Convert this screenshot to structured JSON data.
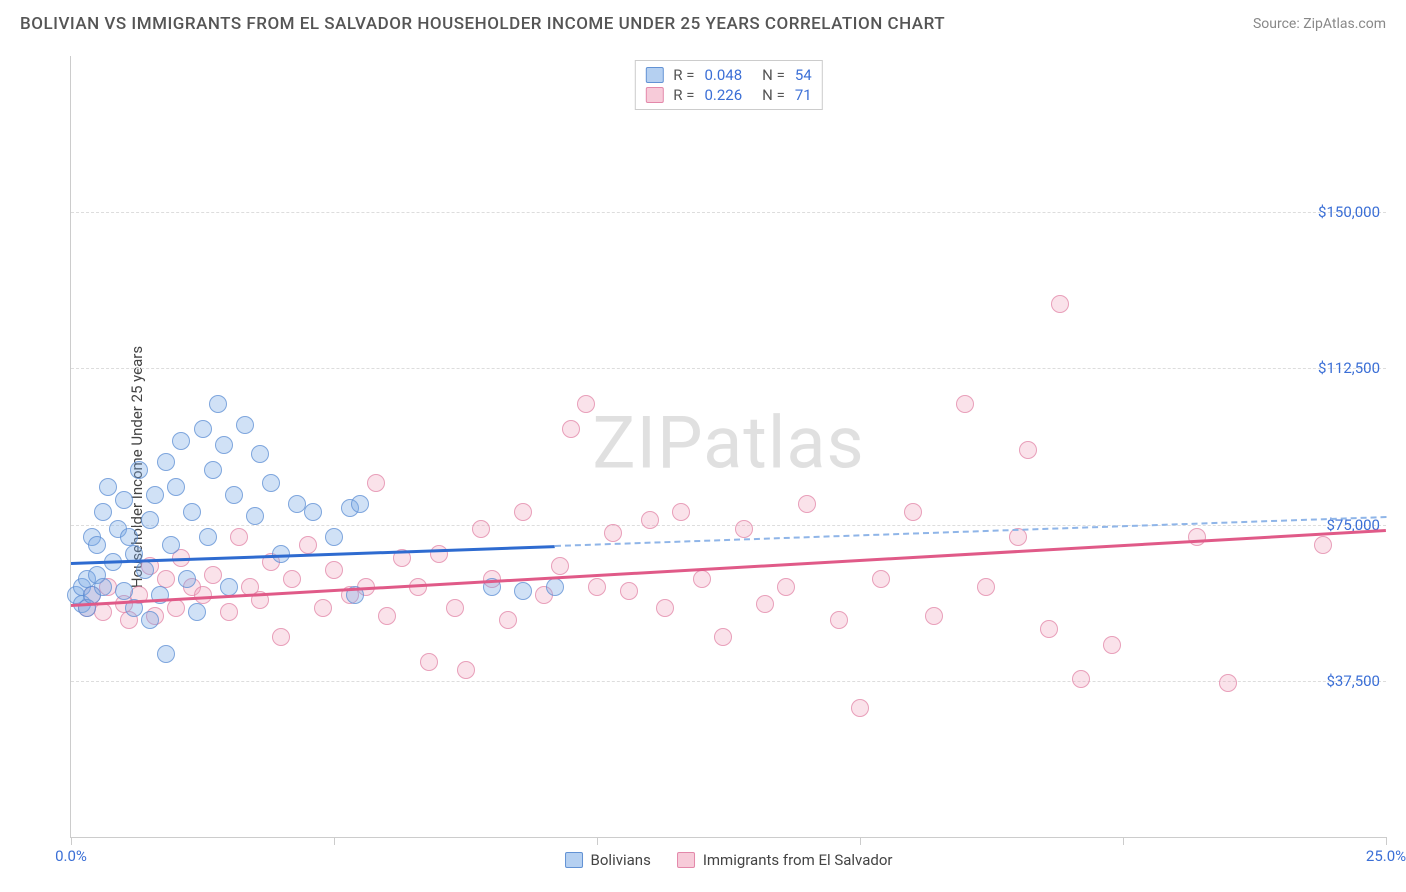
{
  "title": "BOLIVIAN VS IMMIGRANTS FROM EL SALVADOR HOUSEHOLDER INCOME UNDER 25 YEARS CORRELATION CHART",
  "source_prefix": "Source: ",
  "source_name": "ZipAtlas.com",
  "y_axis_label": "Householder Income Under 25 years",
  "watermark": "ZIPatlas",
  "chart": {
    "type": "scatter",
    "xlim": [
      0,
      25
    ],
    "ylim": [
      0,
      187500
    ],
    "x_ticks": [
      0,
      5,
      10,
      15,
      20,
      25
    ],
    "x_tick_labels": {
      "0": "0.0%",
      "25": "25.0%"
    },
    "y_ticks": [
      37500,
      75000,
      112500,
      150000
    ],
    "y_tick_labels": [
      "$37,500",
      "$75,000",
      "$112,500",
      "$150,000"
    ],
    "background_color": "#ffffff",
    "grid_color": "#dddddd",
    "series_a": {
      "label": "Bolivians",
      "color_fill": "rgba(120,170,230,0.35)",
      "color_stroke": "rgba(90,140,210,0.7)",
      "trend_color": "#2e6bd0",
      "R": "0.048",
      "N": "54",
      "trend_y_at_x0": 66000,
      "trend_y_at_x25": 77000,
      "solid_until_x": 9.2,
      "points": [
        [
          0.1,
          58000
        ],
        [
          0.2,
          56000
        ],
        [
          0.2,
          60000
        ],
        [
          0.3,
          62000
        ],
        [
          0.3,
          55000
        ],
        [
          0.4,
          72000
        ],
        [
          0.4,
          58000
        ],
        [
          0.5,
          63000
        ],
        [
          0.5,
          70000
        ],
        [
          0.6,
          78000
        ],
        [
          0.6,
          60000
        ],
        [
          0.7,
          84000
        ],
        [
          0.8,
          66000
        ],
        [
          0.9,
          74000
        ],
        [
          1.0,
          59000
        ],
        [
          1.0,
          81000
        ],
        [
          1.1,
          72000
        ],
        [
          1.2,
          55000
        ],
        [
          1.2,
          68000
        ],
        [
          1.3,
          88000
        ],
        [
          1.4,
          64000
        ],
        [
          1.5,
          52000
        ],
        [
          1.5,
          76000
        ],
        [
          1.6,
          82000
        ],
        [
          1.7,
          58000
        ],
        [
          1.8,
          90000
        ],
        [
          1.8,
          44000
        ],
        [
          1.9,
          70000
        ],
        [
          2.0,
          84000
        ],
        [
          2.1,
          95000
        ],
        [
          2.2,
          62000
        ],
        [
          2.3,
          78000
        ],
        [
          2.4,
          54000
        ],
        [
          2.5,
          98000
        ],
        [
          2.6,
          72000
        ],
        [
          2.7,
          88000
        ],
        [
          2.8,
          104000
        ],
        [
          2.9,
          94000
        ],
        [
          3.0,
          60000
        ],
        [
          3.1,
          82000
        ],
        [
          3.3,
          99000
        ],
        [
          3.5,
          77000
        ],
        [
          3.6,
          92000
        ],
        [
          3.8,
          85000
        ],
        [
          4.0,
          68000
        ],
        [
          4.3,
          80000
        ],
        [
          4.6,
          78000
        ],
        [
          5.0,
          72000
        ],
        [
          5.3,
          79000
        ],
        [
          5.4,
          58000
        ],
        [
          5.5,
          80000
        ],
        [
          8.0,
          60000
        ],
        [
          8.6,
          59000
        ],
        [
          9.2,
          60000
        ]
      ]
    },
    "series_b": {
      "label": "Immigrants from El Salvador",
      "color_fill": "rgba(240,160,185,0.30)",
      "color_stroke": "rgba(225,130,165,0.7)",
      "trend_color": "#e05a88",
      "R": "0.226",
      "N": "71",
      "trend_y_at_x0": 56000,
      "trend_y_at_x25": 74000,
      "points": [
        [
          0.3,
          55000
        ],
        [
          0.4,
          58000
        ],
        [
          0.6,
          54000
        ],
        [
          0.7,
          60000
        ],
        [
          1.0,
          56000
        ],
        [
          1.1,
          52000
        ],
        [
          1.3,
          58000
        ],
        [
          1.5,
          65000
        ],
        [
          1.6,
          53000
        ],
        [
          1.8,
          62000
        ],
        [
          2.0,
          55000
        ],
        [
          2.1,
          67000
        ],
        [
          2.3,
          60000
        ],
        [
          2.5,
          58000
        ],
        [
          2.7,
          63000
        ],
        [
          3.0,
          54000
        ],
        [
          3.2,
          72000
        ],
        [
          3.4,
          60000
        ],
        [
          3.6,
          57000
        ],
        [
          3.8,
          66000
        ],
        [
          4.0,
          48000
        ],
        [
          4.2,
          62000
        ],
        [
          4.5,
          70000
        ],
        [
          4.8,
          55000
        ],
        [
          5.0,
          64000
        ],
        [
          5.3,
          58000
        ],
        [
          5.6,
          60000
        ],
        [
          5.8,
          85000
        ],
        [
          6.0,
          53000
        ],
        [
          6.3,
          67000
        ],
        [
          6.6,
          60000
        ],
        [
          6.8,
          42000
        ],
        [
          7.0,
          68000
        ],
        [
          7.3,
          55000
        ],
        [
          7.5,
          40000
        ],
        [
          7.8,
          74000
        ],
        [
          8.0,
          62000
        ],
        [
          8.3,
          52000
        ],
        [
          8.6,
          78000
        ],
        [
          9.0,
          58000
        ],
        [
          9.3,
          65000
        ],
        [
          9.5,
          98000
        ],
        [
          9.8,
          104000
        ],
        [
          10.0,
          60000
        ],
        [
          10.3,
          73000
        ],
        [
          10.6,
          59000
        ],
        [
          11.0,
          76000
        ],
        [
          11.3,
          55000
        ],
        [
          11.6,
          78000
        ],
        [
          12.0,
          62000
        ],
        [
          12.4,
          48000
        ],
        [
          12.8,
          74000
        ],
        [
          13.2,
          56000
        ],
        [
          13.6,
          60000
        ],
        [
          14.0,
          80000
        ],
        [
          14.6,
          52000
        ],
        [
          15.0,
          31000
        ],
        [
          15.4,
          62000
        ],
        [
          16.0,
          78000
        ],
        [
          16.4,
          53000
        ],
        [
          17.0,
          104000
        ],
        [
          17.4,
          60000
        ],
        [
          18.0,
          72000
        ],
        [
          18.2,
          93000
        ],
        [
          18.6,
          50000
        ],
        [
          18.8,
          128000
        ],
        [
          19.2,
          38000
        ],
        [
          19.8,
          46000
        ],
        [
          21.4,
          72000
        ],
        [
          22.0,
          37000
        ],
        [
          23.8,
          70000
        ]
      ]
    },
    "corr_box": {
      "r_label": "R =",
      "n_label": "N ="
    }
  }
}
